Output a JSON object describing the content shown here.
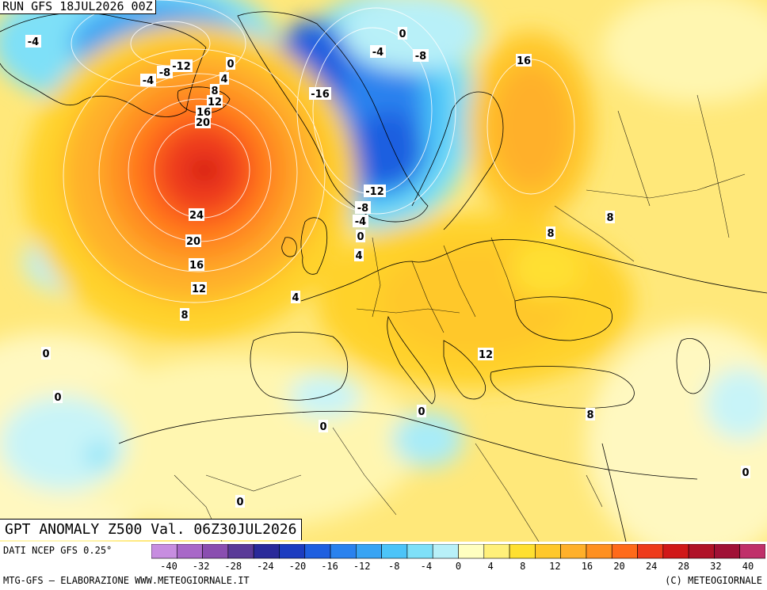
{
  "header": {
    "run_label": "RUN GFS 18JUL2026 00Z",
    "title": "GPT ANOMALY Z500 Val. 06Z30JUL2026"
  },
  "footer": {
    "source": "DATI NCEP GFS 0.25°",
    "credit_left": "MTG-GFS – ELABORAZIONE WWW.METEOGIORNALE.IT",
    "credit_right": "(C) METEOGIORNALE"
  },
  "colorbar": {
    "ticks": [
      "-40",
      "-36",
      "-32",
      "-28",
      "-24",
      "-20",
      "-16",
      "-12",
      "-8",
      "-4",
      "0",
      "4",
      "8",
      "12",
      "16",
      "20",
      "24",
      "28",
      "32",
      "40"
    ],
    "tick_labels_shown": [
      "-40",
      "-32",
      "-28",
      "-24",
      "-20",
      "-16",
      "-12",
      "-8",
      "-4",
      "0",
      "4",
      "8",
      "12",
      "16",
      "20",
      "24",
      "28",
      "32",
      "40"
    ],
    "colors": [
      "#c78de0",
      "#a868c8",
      "#8a4eb0",
      "#5a3a98",
      "#2a2a9a",
      "#1c3cc0",
      "#1f5fe0",
      "#2a82ee",
      "#38a4f4",
      "#4cc4f8",
      "#7ee0f8",
      "#b8f0f8",
      "#ffffc0",
      "#fff07a",
      "#ffe030",
      "#ffc82a",
      "#ffb02a",
      "#ff9020",
      "#ff6a1a",
      "#ee3a1a",
      "#d01818",
      "#b01228",
      "#a01036",
      "#c0306a"
    ]
  },
  "contour_labels": [
    {
      "text": "-4",
      "region": "greenland-west"
    },
    {
      "text": "-4",
      "region": "greenland-south"
    },
    {
      "text": "-8",
      "region": "greenland-south"
    },
    {
      "text": "-12",
      "region": "greenland-south"
    },
    {
      "text": "0",
      "region": "iceland-north"
    },
    {
      "text": "4",
      "region": "iceland"
    },
    {
      "text": "8",
      "region": "iceland"
    },
    {
      "text": "12",
      "region": "iceland"
    },
    {
      "text": "16",
      "region": "iceland"
    },
    {
      "text": "20",
      "region": "iceland"
    },
    {
      "text": "24",
      "region": "north-atlantic"
    },
    {
      "text": "20",
      "region": "north-atlantic"
    },
    {
      "text": "16",
      "region": "north-atlantic"
    },
    {
      "text": "12",
      "region": "north-atlantic"
    },
    {
      "text": "8",
      "region": "north-atlantic"
    },
    {
      "text": "0",
      "region": "svalbard"
    },
    {
      "text": "-4",
      "region": "barents"
    },
    {
      "text": "-8",
      "region": "barents"
    },
    {
      "text": "16",
      "region": "north-russia"
    },
    {
      "text": "-16",
      "region": "norwegian-sea"
    },
    {
      "text": "-12",
      "region": "scandinavia"
    },
    {
      "text": "-8",
      "region": "north-sea"
    },
    {
      "text": "-4",
      "region": "north-sea"
    },
    {
      "text": "0",
      "region": "north-sea"
    },
    {
      "text": "4",
      "region": "benelux"
    },
    {
      "text": "4",
      "region": "france-west"
    },
    {
      "text": "8",
      "region": "russia"
    },
    {
      "text": "8",
      "region": "ukraine"
    },
    {
      "text": "12",
      "region": "balkans"
    },
    {
      "text": "8",
      "region": "turkey"
    },
    {
      "text": "0",
      "region": "atlantic-west"
    },
    {
      "text": "0",
      "region": "atlantic-south"
    },
    {
      "text": "0",
      "region": "north-africa"
    },
    {
      "text": "0",
      "region": "tunisia"
    },
    {
      "text": "0",
      "region": "sahara"
    },
    {
      "text": "0",
      "region": "middle-east"
    }
  ]
}
